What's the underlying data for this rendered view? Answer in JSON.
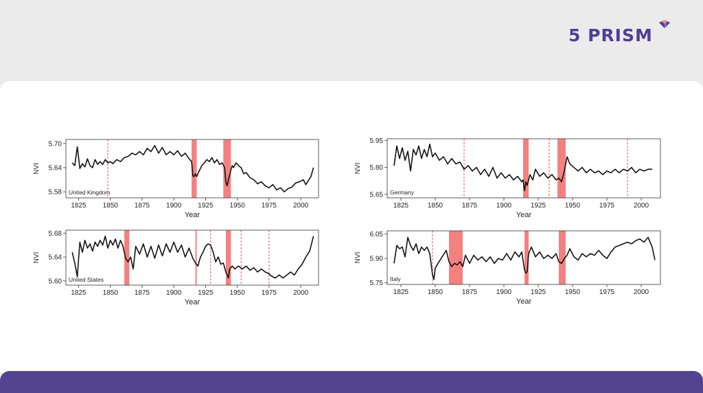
{
  "brand": {
    "name": "5 PRISM",
    "color": "#4f3e96"
  },
  "colors": {
    "band": "#f58080",
    "line": "#111111",
    "footer": "#52448f"
  },
  "chart_data": [
    {
      "type": "line",
      "panel_label": "United Kingdom",
      "xlabel": "Year",
      "ylabel": "NVI",
      "xlim": [
        1815,
        2014
      ],
      "ylim": [
        5.565,
        5.71
      ],
      "x_ticks": [
        1825,
        1850,
        1875,
        1900,
        1925,
        1950,
        1975,
        2000
      ],
      "y_ticks": [
        "5.58",
        "5.64",
        "5.70"
      ],
      "y_tick_values": [
        5.58,
        5.64,
        5.7
      ],
      "bands": [
        [
          1914,
          1918
        ],
        [
          1939,
          1945
        ]
      ],
      "dashed_lines": [
        1848
      ],
      "x": [
        1820,
        1822,
        1824,
        1826,
        1828,
        1830,
        1832,
        1834,
        1836,
        1838,
        1840,
        1842,
        1844,
        1846,
        1848,
        1850,
        1852,
        1855,
        1858,
        1861,
        1864,
        1867,
        1870,
        1873,
        1876,
        1879,
        1882,
        1885,
        1888,
        1891,
        1894,
        1897,
        1900,
        1903,
        1906,
        1909,
        1912,
        1914,
        1915,
        1916,
        1917,
        1918,
        1920,
        1922,
        1924,
        1926,
        1928,
        1930,
        1932,
        1934,
        1936,
        1938,
        1940,
        1941,
        1942,
        1943,
        1944,
        1945,
        1946,
        1947,
        1949,
        1951,
        1953,
        1955,
        1957,
        1960,
        1963,
        1966,
        1969,
        1972,
        1975,
        1978,
        1981,
        1984,
        1987,
        1990,
        1993,
        1996,
        1999,
        2002,
        2004,
        2006,
        2008,
        2010
      ],
      "y": [
        5.652,
        5.645,
        5.692,
        5.638,
        5.65,
        5.642,
        5.662,
        5.645,
        5.64,
        5.66,
        5.648,
        5.655,
        5.648,
        5.66,
        5.652,
        5.655,
        5.65,
        5.66,
        5.655,
        5.665,
        5.668,
        5.676,
        5.672,
        5.68,
        5.672,
        5.688,
        5.68,
        5.695,
        5.676,
        5.69,
        5.672,
        5.68,
        5.672,
        5.682,
        5.668,
        5.676,
        5.662,
        5.655,
        5.62,
        5.618,
        5.625,
        5.618,
        5.632,
        5.645,
        5.652,
        5.66,
        5.655,
        5.665,
        5.652,
        5.66,
        5.648,
        5.652,
        5.64,
        5.605,
        5.595,
        5.61,
        5.622,
        5.635,
        5.645,
        5.64,
        5.652,
        5.645,
        5.64,
        5.625,
        5.628,
        5.615,
        5.61,
        5.6,
        5.605,
        5.595,
        5.59,
        5.598,
        5.585,
        5.59,
        5.58,
        5.588,
        5.592,
        5.602,
        5.605,
        5.61,
        5.598,
        5.608,
        5.618,
        5.64
      ]
    },
    {
      "type": "line",
      "panel_label": "Germany",
      "xlabel": "Year",
      "ylabel": "NVI",
      "xlim": [
        1815,
        2014
      ],
      "ylim": [
        5.63,
        5.96
      ],
      "x_ticks": [
        1825,
        1850,
        1875,
        1900,
        1925,
        1950,
        1975,
        2000
      ],
      "y_ticks": [
        "5.65",
        "5.80",
        "5.95"
      ],
      "y_tick_values": [
        5.65,
        5.8,
        5.95
      ],
      "bands": [
        [
          1914,
          1918
        ],
        [
          1939,
          1945
        ]
      ],
      "dashed_lines": [
        1871,
        1933,
        1990
      ],
      "x": [
        1820,
        1822,
        1824,
        1826,
        1828,
        1830,
        1832,
        1834,
        1836,
        1838,
        1840,
        1842,
        1844,
        1846,
        1848,
        1850,
        1853,
        1856,
        1859,
        1862,
        1865,
        1868,
        1871,
        1874,
        1877,
        1880,
        1883,
        1886,
        1889,
        1892,
        1895,
        1898,
        1901,
        1904,
        1907,
        1910,
        1913,
        1914,
        1915,
        1916,
        1917,
        1919,
        1921,
        1923,
        1926,
        1929,
        1932,
        1935,
        1938,
        1940,
        1942,
        1944,
        1946,
        1948,
        1951,
        1954,
        1957,
        1960,
        1963,
        1966,
        1969,
        1972,
        1975,
        1978,
        1981,
        1984,
        1987,
        1990,
        1993,
        1996,
        1999,
        2002,
        2005,
        2008
      ],
      "y": [
        5.81,
        5.92,
        5.85,
        5.91,
        5.84,
        5.89,
        5.78,
        5.9,
        5.87,
        5.92,
        5.85,
        5.9,
        5.86,
        5.93,
        5.86,
        5.88,
        5.84,
        5.86,
        5.82,
        5.85,
        5.82,
        5.83,
        5.79,
        5.81,
        5.78,
        5.8,
        5.76,
        5.79,
        5.75,
        5.8,
        5.74,
        5.77,
        5.74,
        5.76,
        5.73,
        5.75,
        5.72,
        5.73,
        5.67,
        5.72,
        5.7,
        5.76,
        5.73,
        5.79,
        5.75,
        5.77,
        5.74,
        5.76,
        5.73,
        5.74,
        5.72,
        5.78,
        5.86,
        5.82,
        5.8,
        5.78,
        5.8,
        5.77,
        5.79,
        5.77,
        5.78,
        5.76,
        5.78,
        5.77,
        5.79,
        5.77,
        5.79,
        5.78,
        5.8,
        5.77,
        5.79,
        5.78,
        5.79,
        5.79
      ]
    },
    {
      "type": "line",
      "panel_label": "United States",
      "xlabel": "Year",
      "ylabel": "NVI",
      "xlim": [
        1815,
        2014
      ],
      "ylim": [
        5.593,
        5.685
      ],
      "x_ticks": [
        1825,
        1850,
        1875,
        1900,
        1925,
        1950,
        1975,
        2000
      ],
      "y_ticks": [
        "5.60",
        "5.64",
        "5.68"
      ],
      "y_tick_values": [
        5.6,
        5.64,
        5.68
      ],
      "bands": [
        [
          1861,
          1865
        ],
        [
          1917,
          1918
        ],
        [
          1941,
          1945
        ]
      ],
      "dashed_lines": [
        1929,
        1953,
        1975
      ],
      "x": [
        1820,
        1822,
        1824,
        1826,
        1828,
        1830,
        1832,
        1834,
        1836,
        1838,
        1840,
        1842,
        1844,
        1846,
        1848,
        1850,
        1852,
        1854,
        1856,
        1858,
        1860,
        1862,
        1864,
        1866,
        1868,
        1870,
        1873,
        1876,
        1879,
        1882,
        1885,
        1888,
        1891,
        1894,
        1897,
        1900,
        1903,
        1906,
        1909,
        1912,
        1915,
        1917,
        1919,
        1921,
        1923,
        1925,
        1927,
        1929,
        1931,
        1933,
        1935,
        1937,
        1939,
        1941,
        1942,
        1943,
        1944,
        1946,
        1948,
        1951,
        1954,
        1957,
        1960,
        1963,
        1966,
        1969,
        1972,
        1975,
        1977,
        1980,
        1983,
        1986,
        1989,
        1992,
        1995,
        1998,
        2001,
        2004,
        2007,
        2010
      ],
      "y": [
        5.648,
        5.63,
        5.607,
        5.665,
        5.648,
        5.668,
        5.655,
        5.662,
        5.65,
        5.665,
        5.658,
        5.668,
        5.66,
        5.675,
        5.655,
        5.668,
        5.66,
        5.67,
        5.655,
        5.668,
        5.658,
        5.638,
        5.632,
        5.64,
        5.62,
        5.658,
        5.645,
        5.662,
        5.64,
        5.658,
        5.638,
        5.66,
        5.642,
        5.662,
        5.648,
        5.665,
        5.648,
        5.66,
        5.64,
        5.655,
        5.638,
        5.63,
        5.625,
        5.64,
        5.648,
        5.658,
        5.662,
        5.66,
        5.648,
        5.632,
        5.64,
        5.628,
        5.63,
        5.615,
        5.61,
        5.605,
        5.62,
        5.625,
        5.62,
        5.625,
        5.62,
        5.625,
        5.618,
        5.622,
        5.615,
        5.62,
        5.615,
        5.612,
        5.608,
        5.605,
        5.61,
        5.605,
        5.61,
        5.615,
        5.61,
        5.62,
        5.628,
        5.64,
        5.65,
        5.675
      ]
    },
    {
      "type": "line",
      "panel_label": "Italy",
      "xlabel": "Year",
      "ylabel": "NVI",
      "xlim": [
        1815,
        2014
      ],
      "ylim": [
        5.74,
        6.07
      ],
      "x_ticks": [
        1825,
        1850,
        1875,
        1900,
        1925,
        1950,
        1975,
        2000
      ],
      "y_ticks": [
        "5.75",
        "5.90",
        "6.05"
      ],
      "y_tick_values": [
        5.75,
        5.9,
        6.05
      ],
      "bands": [
        [
          1860,
          1870
        ],
        [
          1915,
          1918
        ],
        [
          1940,
          1945
        ]
      ],
      "dashed_lines": [
        1848
      ],
      "x": [
        1820,
        1822,
        1824,
        1826,
        1828,
        1830,
        1832,
        1834,
        1836,
        1838,
        1840,
        1842,
        1844,
        1846,
        1848,
        1849,
        1850,
        1852,
        1855,
        1858,
        1860,
        1862,
        1864,
        1866,
        1868,
        1870,
        1872,
        1875,
        1878,
        1881,
        1884,
        1887,
        1890,
        1893,
        1896,
        1899,
        1902,
        1905,
        1908,
        1911,
        1913,
        1915,
        1916,
        1917,
        1918,
        1920,
        1923,
        1926,
        1929,
        1932,
        1935,
        1938,
        1940,
        1942,
        1944,
        1946,
        1948,
        1951,
        1954,
        1957,
        1960,
        1963,
        1966,
        1969,
        1972,
        1975,
        1978,
        1981,
        1984,
        1987,
        1990,
        1993,
        1996,
        1999,
        2002,
        2005,
        2008,
        2010
      ],
      "y": [
        5.87,
        5.98,
        5.96,
        5.97,
        5.91,
        6.03,
        5.98,
        5.95,
        5.99,
        5.93,
        5.97,
        5.95,
        5.97,
        5.93,
        5.8,
        5.77,
        5.84,
        5.87,
        5.91,
        5.95,
        5.88,
        5.85,
        5.87,
        5.86,
        5.88,
        5.85,
        5.92,
        5.87,
        5.92,
        5.89,
        5.91,
        5.88,
        5.91,
        5.87,
        5.9,
        5.89,
        5.93,
        5.89,
        5.94,
        5.91,
        5.94,
        5.83,
        5.81,
        5.82,
        5.93,
        5.97,
        5.91,
        5.94,
        5.9,
        5.92,
        5.9,
        5.93,
        5.88,
        5.87,
        5.9,
        5.92,
        5.96,
        5.91,
        5.89,
        5.93,
        5.91,
        5.93,
        5.92,
        5.95,
        5.92,
        5.9,
        5.94,
        5.97,
        5.98,
        5.99,
        6.0,
        5.99,
        6.01,
        6.02,
        6.0,
        6.03,
        5.97,
        5.89
      ]
    }
  ]
}
